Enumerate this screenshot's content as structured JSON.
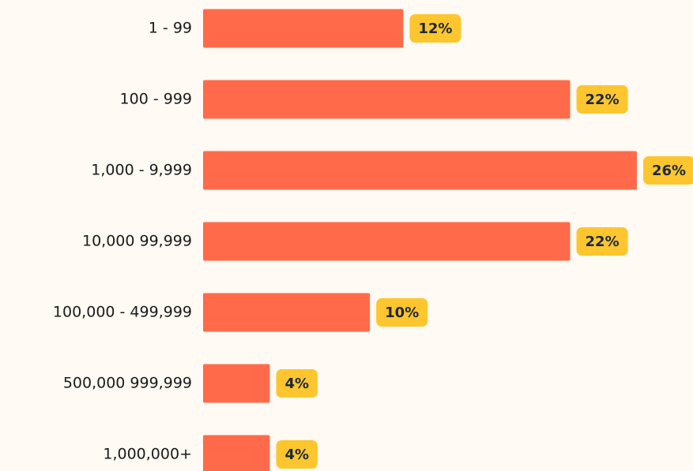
{
  "chart_data": {
    "type": "hbar",
    "categories": [
      "1 - 99",
      "100 - 999",
      "1,000 - 9,999",
      "10,000 99,999",
      "100,000 - 499,999",
      "500,000 999,999",
      "1,000,000+"
    ],
    "values": [
      12,
      22,
      26,
      22,
      10,
      4,
      4
    ],
    "value_labels": [
      "12%",
      "22%",
      "26%",
      "22%",
      "10%",
      "4%",
      "4%"
    ],
    "color": "#ff6b4a",
    "label_color": "#fdc62e"
  }
}
